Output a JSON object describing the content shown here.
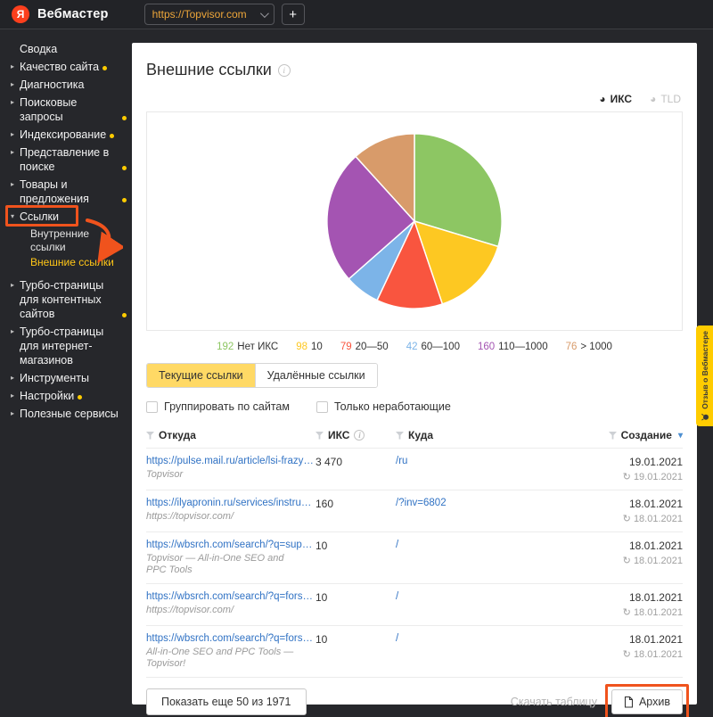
{
  "topbar": {
    "logo_letter": "Я",
    "app_title": "Вебмастер",
    "host_selector": {
      "value": "https://Topvisor.com"
    },
    "add_site_label": "+"
  },
  "sidebar": {
    "items": [
      {
        "label": "Сводка",
        "expandable": false,
        "dot": false
      },
      {
        "label": "Качество сайта",
        "expandable": true,
        "dot": true
      },
      {
        "label": "Диагностика",
        "expandable": true,
        "dot": false
      },
      {
        "label": "Поисковые запросы",
        "expandable": true,
        "dot": true
      },
      {
        "label": "Индексирование",
        "expandable": true,
        "dot": true
      },
      {
        "label": "Представление в поиске",
        "expandable": true,
        "dot": true
      },
      {
        "label": "Товары и предложения",
        "expandable": true,
        "dot": true
      },
      {
        "label": "Ссылки",
        "expandable": true,
        "expanded": true,
        "dot": false
      },
      {
        "label": "Турбо-страницы для контентных сайтов",
        "expandable": true,
        "dot": true
      },
      {
        "label": "Турбо-страницы для интернет-магазинов",
        "expandable": true,
        "dot": false
      },
      {
        "label": "Инструменты",
        "expandable": true,
        "dot": false
      },
      {
        "label": "Настройки",
        "expandable": true,
        "dot": true
      },
      {
        "label": "Полезные сервисы",
        "expandable": true,
        "dot": false
      }
    ],
    "links_children": [
      {
        "label": "Внутренние ссылки",
        "active": false
      },
      {
        "label": "Внешние ссылки",
        "active": true
      }
    ]
  },
  "main": {
    "title": "Внешние ссылки",
    "chart_toggles": [
      {
        "label": "ИКС",
        "active": true
      },
      {
        "label": "TLD",
        "active": false
      }
    ],
    "tabs": [
      {
        "label": "Текущие ссылки",
        "active": true
      },
      {
        "label": "Удалённые ссылки",
        "active": false
      }
    ],
    "filters": [
      {
        "label": "Группировать по сайтам",
        "checked": false
      },
      {
        "label": "Только неработающие",
        "checked": false
      }
    ],
    "table": {
      "columns": [
        {
          "label": "Откуда"
        },
        {
          "label": "ИКС"
        },
        {
          "label": "Куда"
        },
        {
          "label": "Создание",
          "sorted": "desc"
        }
      ],
      "rows": [
        {
          "from": "https://pulse.mail.ru/article/lsi-frazy-chto-...",
          "from_note": "Topvisor",
          "iks": "3 470",
          "to": "/ru",
          "created": "19.01.2021",
          "checked": "19.01.2021"
        },
        {
          "from": "https://ilyapronin.ru/services/instrumenty...",
          "from_note": "https://topvisor.com/",
          "iks": "160",
          "to": "/?inv=6802",
          "created": "18.01.2021",
          "checked": "18.01.2021"
        },
        {
          "from": "https://wbsrch.com/search/?q=supporte",
          "from_note": "Topvisor — All-in-One SEO and PPC Tools",
          "iks": "10",
          "to": "/",
          "created": "18.01.2021",
          "checked": "18.01.2021"
        },
        {
          "from": "https://wbsrch.com/search/?q=forsaleby...",
          "from_note": "https://topvisor.com/",
          "iks": "10",
          "to": "/",
          "created": "18.01.2021",
          "checked": "18.01.2021"
        },
        {
          "from": "https://wbsrch.com/search/?q=forsaleby...",
          "from_note": "All-in-One SEO and PPC Tools — Topvisor!",
          "iks": "10",
          "to": "/",
          "created": "18.01.2021",
          "checked": "18.01.2021"
        }
      ]
    },
    "footer": {
      "show_more_label": "Показать еще 50 из 1971",
      "download_label": "Скачать таблицу",
      "archive_label": "Архив"
    }
  },
  "feedback_tab_label": "Отзыв о Вебмастере",
  "icons": {
    "refresh": "↻",
    "sort_desc": "▾",
    "pie_toggle": "◕"
  },
  "colors": {
    "accent_yellow": "#ffcc00",
    "annotation_orange": "#f0531d",
    "link_blue": "#3072c4",
    "active_tab_bg": "#ffd965"
  },
  "chart_data": {
    "type": "pie",
    "title": "",
    "total": 647,
    "start_angle_deg": 0,
    "direction": "clockwise",
    "legend_position": "bottom",
    "slices": [
      {
        "label": "Нет ИКС",
        "value": 192,
        "color": "#8dc663"
      },
      {
        "label": "10",
        "value": 98,
        "color": "#fdc822"
      },
      {
        "label": "20—50",
        "value": 79,
        "color": "#f9553f"
      },
      {
        "label": "60—100",
        "value": 42,
        "color": "#7cb4e8"
      },
      {
        "label": "110—1000",
        "value": 160,
        "color": "#a454b2"
      },
      {
        "label": "> 1000",
        "value": 76,
        "color": "#d89b6a"
      }
    ]
  }
}
